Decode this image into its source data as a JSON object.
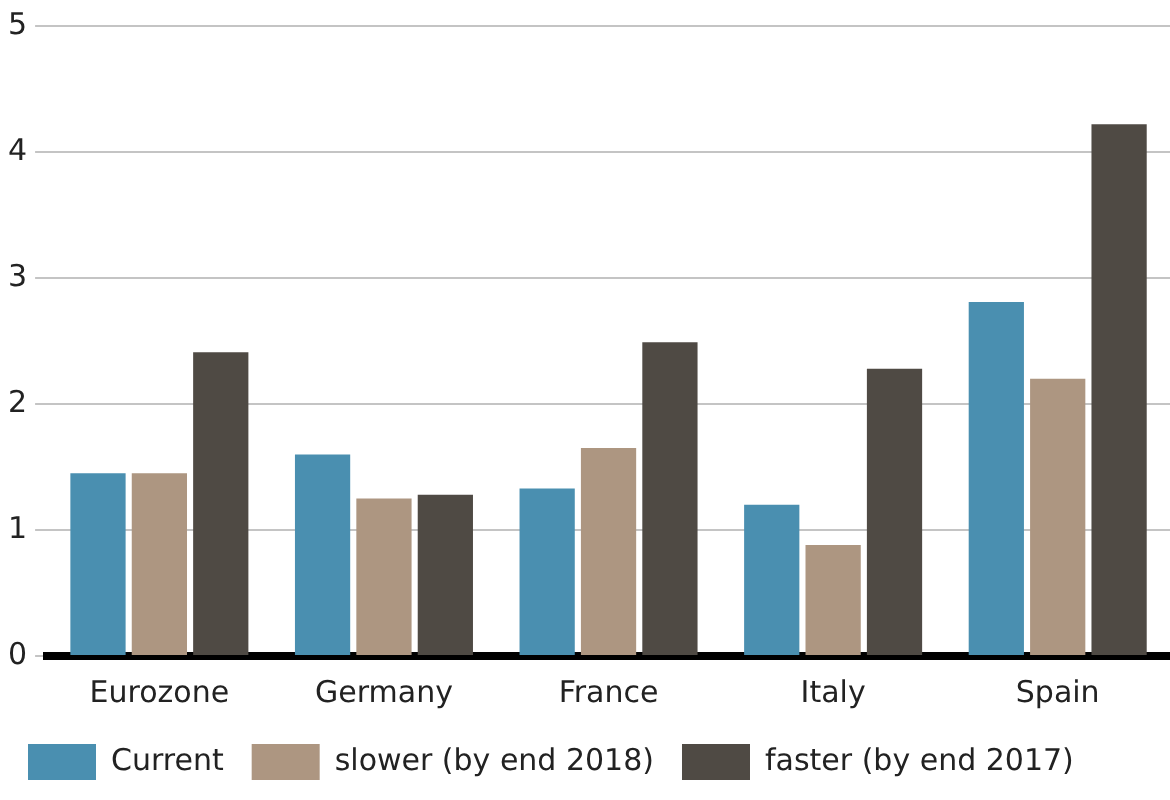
{
  "chart_data": {
    "type": "bar",
    "categories": [
      "Eurozone",
      "Germany",
      "France",
      "Italy",
      "Spain"
    ],
    "series": [
      {
        "name": "Current",
        "color": "#4a8fb0",
        "values": [
          1.45,
          1.6,
          1.33,
          1.2,
          2.81
        ]
      },
      {
        "name": "slower (by end 2018)",
        "color": "#ad9681",
        "values": [
          1.45,
          1.25,
          1.65,
          0.88,
          2.2
        ]
      },
      {
        "name": "faster (by end 2017)",
        "color": "#4f4a44",
        "values": [
          2.41,
          1.28,
          2.49,
          2.28,
          4.22
        ]
      }
    ],
    "ylim": [
      0,
      5
    ],
    "yticks": [
      0,
      1,
      2,
      3,
      4,
      5
    ],
    "grid": "y",
    "legend": "bottom"
  }
}
